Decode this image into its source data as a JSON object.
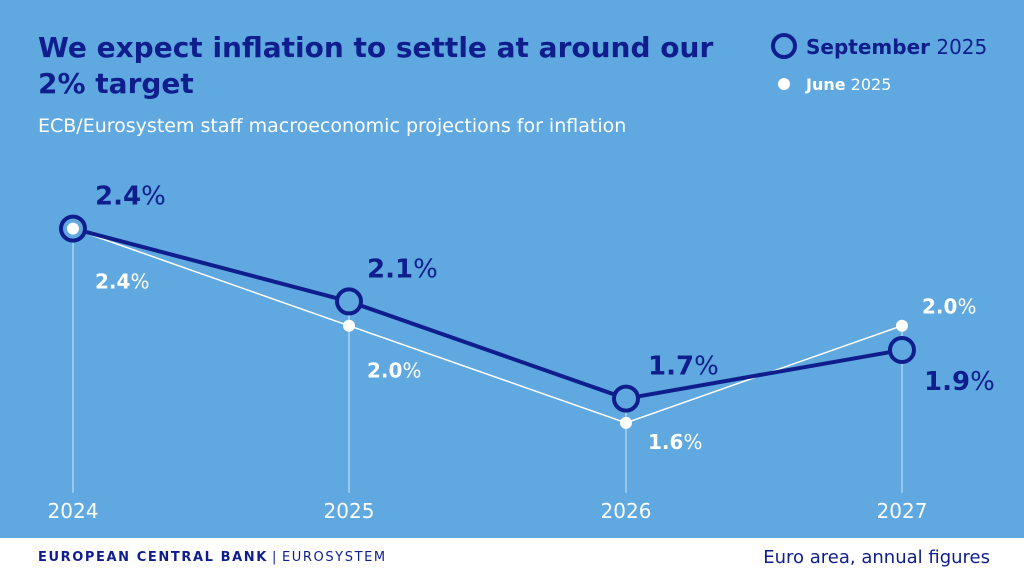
{
  "header": {
    "title": "We expect inflation to settle at around our 2% target",
    "subtitle": "ECB/Eurosystem staff macroeconomic projections for inflation"
  },
  "legend": [
    {
      "bold": "September",
      "rest": " 2025"
    },
    {
      "bold": "June",
      "rest": " 2025"
    }
  ],
  "chart_data": {
    "type": "line",
    "title": "We expect inflation to settle at around our 2% target",
    "subtitle": "ECB/Eurosystem staff macroeconomic projections for inflation",
    "categories": [
      "2024",
      "2025",
      "2026",
      "2027"
    ],
    "ylim": [
      1.2,
      2.6
    ],
    "grid": false,
    "legend_position": "top-right",
    "series": [
      {
        "name": "September 2025",
        "values": [
          2.4,
          2.1,
          1.7,
          1.9
        ],
        "labels": [
          "2.4%",
          "2.1%",
          "1.7%",
          "1.9%"
        ],
        "color": "#0f1e8c"
      },
      {
        "name": "June 2025",
        "values": [
          2.4,
          2.0,
          1.6,
          2.0
        ],
        "labels": [
          "2.4%",
          "2.0%",
          "1.6%",
          "2.0%"
        ],
        "color": "#ffffff"
      }
    ]
  },
  "footer": {
    "org": "EUROPEAN CENTRAL BANK",
    "separator": "|",
    "system": "EUROSYSTEM",
    "note": "Euro area, annual figures"
  },
  "colors": {
    "background": "#5fa8e0",
    "accent": "#0f1e8c",
    "secondary": "#ffffff"
  }
}
